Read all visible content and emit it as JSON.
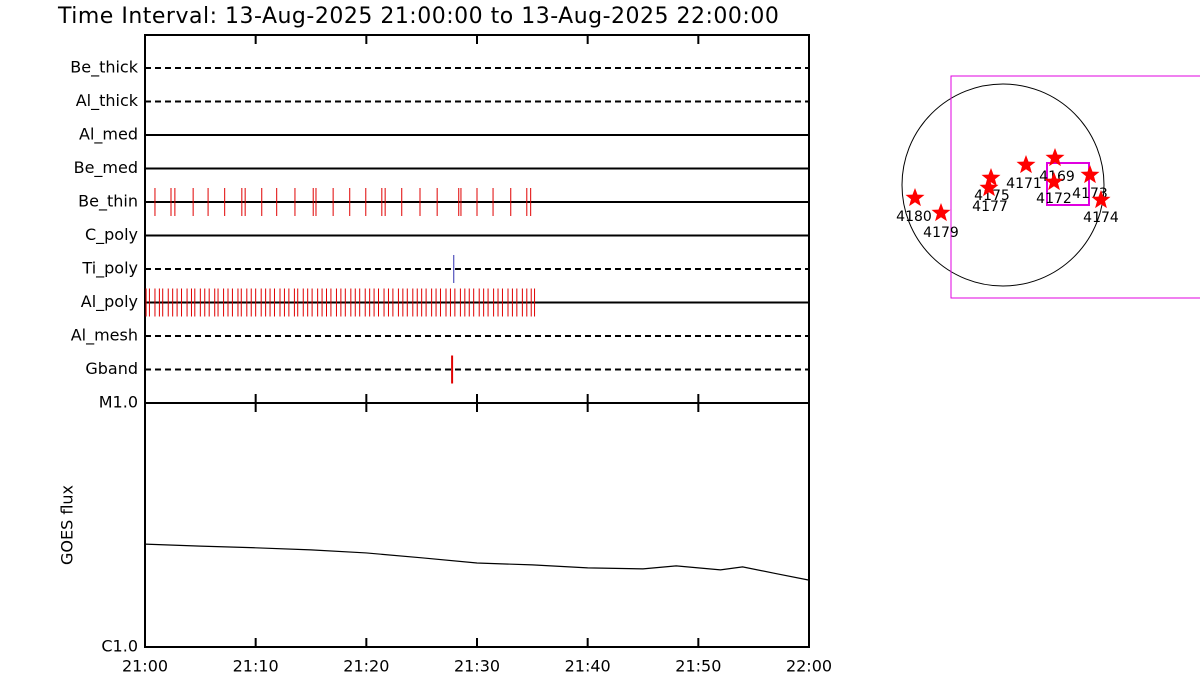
{
  "title": "Time Interval: 13-Aug-2025 21:00:00 to 13-Aug-2025 22:00:00",
  "chart_data": [
    {
      "type": "timeline",
      "xlim": [
        0,
        60
      ],
      "xticks": [
        0,
        10,
        20,
        30,
        40,
        50,
        60
      ],
      "rows": [
        {
          "name": "Be_thick",
          "line": "dashed"
        },
        {
          "name": "Al_thick",
          "line": "dashed"
        },
        {
          "name": "Al_med",
          "line": "solid"
        },
        {
          "name": "Be_med",
          "line": "solid"
        },
        {
          "name": "Be_thin",
          "line": "solid",
          "color": "#e00000",
          "events": [
            0.9,
            2.35,
            2.7,
            4.35,
            5.7,
            7.2,
            8.75,
            9.05,
            10.55,
            11.9,
            13.55,
            15.2,
            15.45,
            17.0,
            18.5,
            19.95,
            21.4,
            21.7,
            23.2,
            24.85,
            26.4,
            28.35,
            28.55,
            30.0,
            31.45,
            33.05,
            34.5,
            34.85
          ]
        },
        {
          "name": "C_poly",
          "line": "solid"
        },
        {
          "name": "Ti_poly",
          "line": "dashed",
          "color": "#3030b0",
          "events": [
            27.9
          ]
        },
        {
          "name": "Al_poly",
          "line": "solid",
          "color": "#e00000",
          "events": [
            0.1,
            0.4,
            0.9,
            1.3,
            1.6,
            2.1,
            2.5,
            2.9,
            3.3,
            3.8,
            4.2,
            4.5,
            5.0,
            5.4,
            5.8,
            6.3,
            6.6,
            7.1,
            7.5,
            7.9,
            8.4,
            8.7,
            9.2,
            9.6,
            10.0,
            10.5,
            10.9,
            11.3,
            11.7,
            12.2,
            12.6,
            13.0,
            13.5,
            13.8,
            14.3,
            14.7,
            15.1,
            15.6,
            16.0,
            16.4,
            16.8,
            17.3,
            17.7,
            18.1,
            18.6,
            19.0,
            19.4,
            19.9,
            20.3,
            20.7,
            21.1,
            21.6,
            22.0,
            22.4,
            22.9,
            23.3,
            23.7,
            24.2,
            24.6,
            25.0,
            25.4,
            25.9,
            26.3,
            26.7,
            27.2,
            27.6,
            28.0,
            28.5,
            28.9,
            29.3,
            29.7,
            30.2,
            30.6,
            31.0,
            31.5,
            31.9,
            32.3,
            32.8,
            33.2,
            33.6,
            34.1,
            34.5,
            34.9,
            35.2
          ]
        },
        {
          "name": "Al_mesh",
          "line": "dashed"
        },
        {
          "name": "Gband",
          "line": "dashed",
          "color": "#e00000",
          "events": [
            27.75
          ]
        }
      ]
    },
    {
      "type": "line",
      "ylabel": "GOES flux",
      "color": "#000000",
      "log_y": true,
      "x": [
        0,
        5,
        10,
        15,
        20,
        25,
        30,
        35,
        40,
        45,
        48,
        50,
        52,
        54,
        57,
        60
      ],
      "values": [
        2.64e-06,
        2.59e-06,
        2.55e-06,
        2.5e-06,
        2.43e-06,
        2.32e-06,
        2.21e-06,
        2.17e-06,
        2.11e-06,
        2.09e-06,
        2.15e-06,
        2.11e-06,
        2.07e-06,
        2.13e-06,
        2e-06,
        1.88e-06
      ],
      "xlim": [
        0,
        60
      ],
      "ylim": [
        1e-06,
        1e-05
      ],
      "xticks": [
        {
          "value": 0,
          "label": "21:00"
        },
        {
          "value": 10,
          "label": "21:10"
        },
        {
          "value": 20,
          "label": "21:20"
        },
        {
          "value": 30,
          "label": "21:30"
        },
        {
          "value": 40,
          "label": "21:40"
        },
        {
          "value": 50,
          "label": "21:50"
        },
        {
          "value": 60,
          "label": "22:00"
        }
      ],
      "yticks": [
        {
          "value": 1e-06,
          "label": "C1.0"
        },
        {
          "value": 1e-05,
          "label": "M1.0"
        }
      ]
    },
    {
      "type": "map",
      "star_color": "#ff0000",
      "regions": [
        "4180",
        "4179",
        "4175",
        "4177",
        "4171",
        "4169",
        "4172",
        "4173",
        "4174"
      ]
    }
  ]
}
